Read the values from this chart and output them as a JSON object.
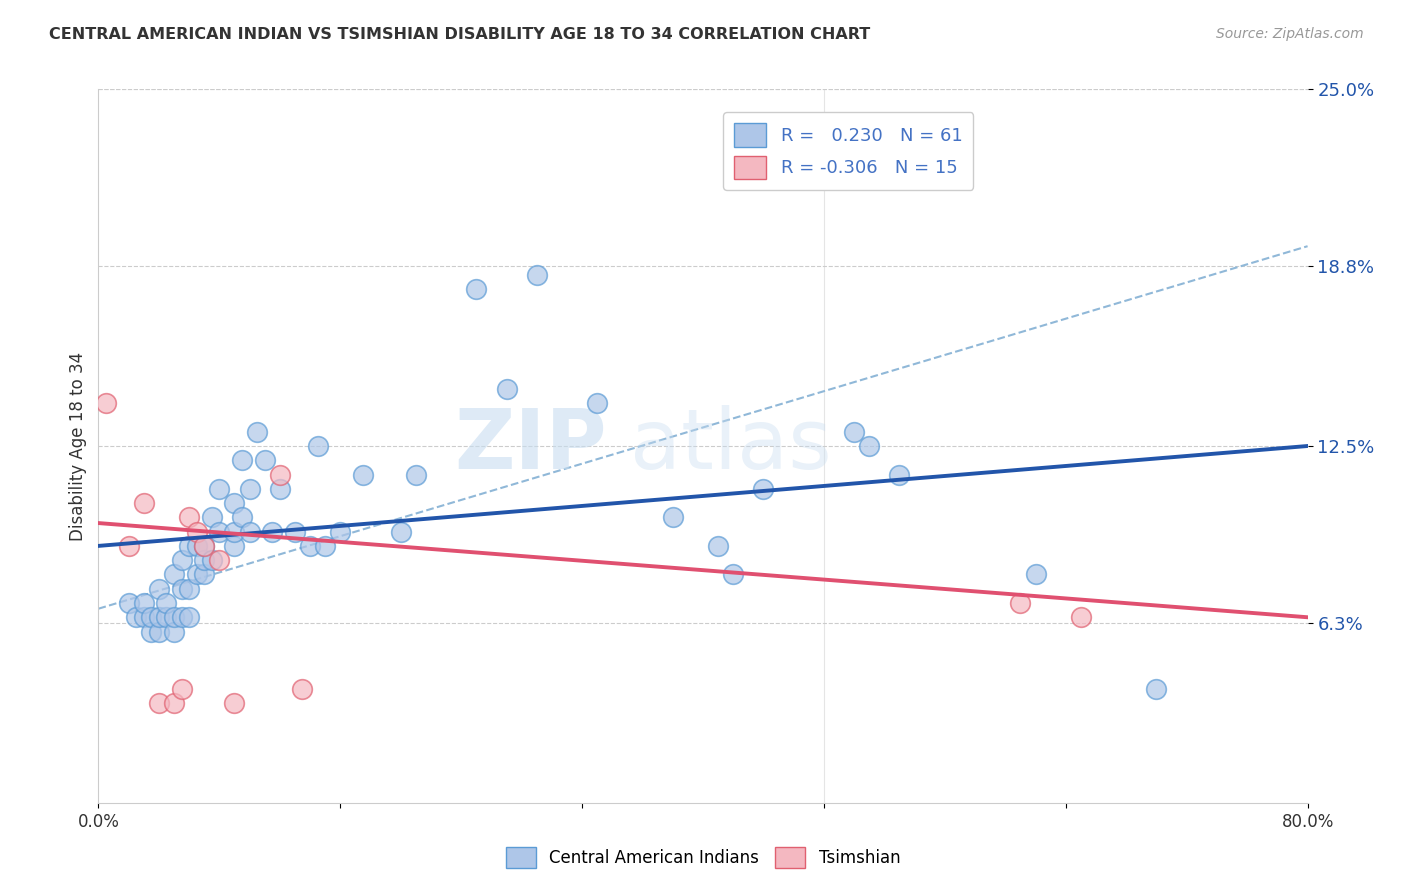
{
  "title": "CENTRAL AMERICAN INDIAN VS TSIMSHIAN DISABILITY AGE 18 TO 34 CORRELATION CHART",
  "source": "Source: ZipAtlas.com",
  "ylabel": "Disability Age 18 to 34",
  "xlim": [
    0.0,
    0.8
  ],
  "ylim": [
    0.0,
    0.25
  ],
  "yticks": [
    0.063,
    0.125,
    0.188,
    0.25
  ],
  "ytick_labels": [
    "6.3%",
    "12.5%",
    "18.8%",
    "25.0%"
  ],
  "xticks": [
    0.0,
    0.16,
    0.32,
    0.48,
    0.64,
    0.8
  ],
  "xtick_labels": [
    "0.0%",
    "",
    "",
    "",
    "",
    "80.0%"
  ],
  "blue_color": "#aec6e8",
  "blue_edge": "#5b9bd5",
  "pink_color": "#f4b8c1",
  "pink_edge": "#e06070",
  "blue_line_color": "#2255aa",
  "pink_line_color": "#e05070",
  "dash_line_color": "#90b8d8",
  "watermark_zip": "ZIP",
  "watermark_atlas": "atlas",
  "legend_blue_label": "R =   0.230   N = 61",
  "legend_pink_label": "R = -0.306   N = 15",
  "blue_scatter_x": [
    0.02,
    0.025,
    0.03,
    0.03,
    0.035,
    0.035,
    0.04,
    0.04,
    0.04,
    0.045,
    0.045,
    0.05,
    0.05,
    0.05,
    0.055,
    0.055,
    0.055,
    0.06,
    0.06,
    0.06,
    0.065,
    0.065,
    0.07,
    0.07,
    0.07,
    0.075,
    0.075,
    0.08,
    0.08,
    0.09,
    0.09,
    0.09,
    0.095,
    0.095,
    0.1,
    0.1,
    0.105,
    0.11,
    0.115,
    0.12,
    0.13,
    0.14,
    0.145,
    0.15,
    0.16,
    0.175,
    0.2,
    0.21,
    0.25,
    0.27,
    0.29,
    0.33,
    0.38,
    0.41,
    0.42,
    0.44,
    0.5,
    0.51,
    0.53,
    0.62,
    0.7
  ],
  "blue_scatter_y": [
    0.07,
    0.065,
    0.065,
    0.07,
    0.06,
    0.065,
    0.06,
    0.065,
    0.075,
    0.065,
    0.07,
    0.06,
    0.065,
    0.08,
    0.065,
    0.075,
    0.085,
    0.065,
    0.075,
    0.09,
    0.08,
    0.09,
    0.08,
    0.085,
    0.09,
    0.085,
    0.1,
    0.095,
    0.11,
    0.09,
    0.095,
    0.105,
    0.1,
    0.12,
    0.095,
    0.11,
    0.13,
    0.12,
    0.095,
    0.11,
    0.095,
    0.09,
    0.125,
    0.09,
    0.095,
    0.115,
    0.095,
    0.115,
    0.18,
    0.145,
    0.185,
    0.14,
    0.1,
    0.09,
    0.08,
    0.11,
    0.13,
    0.125,
    0.115,
    0.08,
    0.04
  ],
  "pink_scatter_x": [
    0.005,
    0.02,
    0.03,
    0.04,
    0.05,
    0.055,
    0.06,
    0.065,
    0.07,
    0.08,
    0.09,
    0.12,
    0.135,
    0.61,
    0.65
  ],
  "pink_scatter_y": [
    0.14,
    0.09,
    0.105,
    0.035,
    0.035,
    0.04,
    0.1,
    0.095,
    0.09,
    0.085,
    0.035,
    0.115,
    0.04,
    0.07,
    0.065
  ],
  "blue_trend_x0": 0.0,
  "blue_trend_x1": 0.8,
  "blue_trend_y0": 0.09,
  "blue_trend_y1": 0.125,
  "pink_trend_x0": 0.0,
  "pink_trend_x1": 0.8,
  "pink_trend_y0": 0.098,
  "pink_trend_y1": 0.065,
  "dash_trend_x0": 0.0,
  "dash_trend_x1": 0.8,
  "dash_trend_y0": 0.068,
  "dash_trend_y1": 0.195
}
